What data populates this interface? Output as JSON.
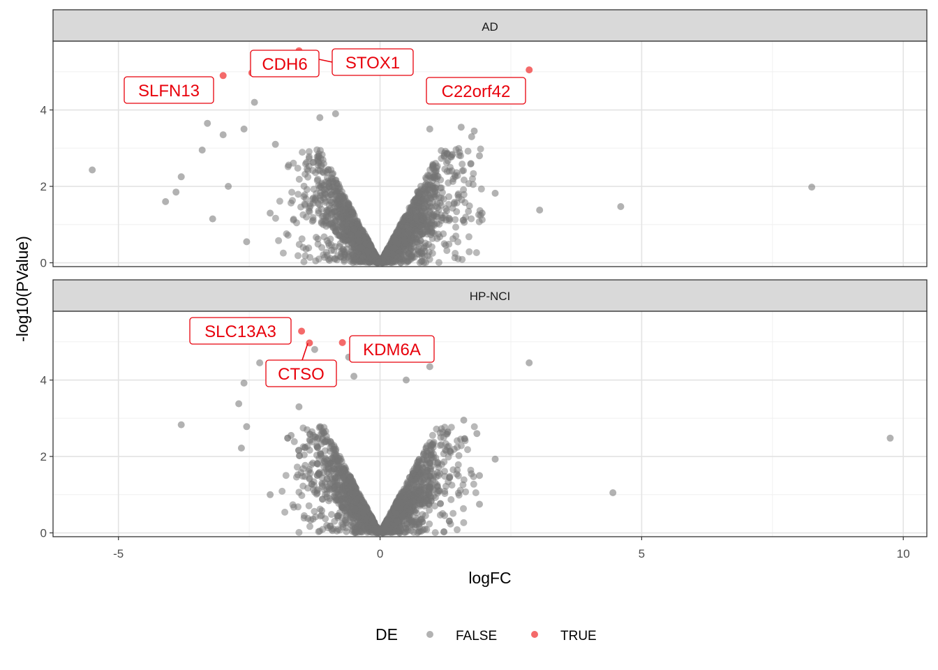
{
  "chart_data": {
    "type": "scatter",
    "facet_panels": [
      "AD",
      "HP-NCI"
    ],
    "xlabel": "logFC",
    "ylabel": "-log10(PValue)",
    "xlim": [
      -6.25,
      10.45
    ],
    "ylim": [
      -0.1,
      5.8
    ],
    "x_ticks": [
      -5,
      0,
      5,
      10
    ],
    "y_ticks": [
      0,
      2,
      4
    ],
    "x_tick_labels": [
      "-5",
      "0",
      "5",
      "10"
    ],
    "y_tick_labels": [
      "0",
      "2",
      "4"
    ],
    "grid": true,
    "legend": {
      "title": "DE",
      "position": "bottom",
      "entries": [
        {
          "label": "FALSE",
          "color": "#7f7f7f"
        },
        {
          "label": "TRUE",
          "color": "#f8766d"
        }
      ]
    },
    "colors": {
      "FALSE": "#737373",
      "TRUE": "#f25050",
      "label": "#e8000b"
    },
    "panels": [
      {
        "name": "AD",
        "highlighted": [
          {
            "gene": "SLFN13",
            "x": -3.0,
            "y": 4.9
          },
          {
            "gene": "CDH6",
            "x": -2.45,
            "y": 4.97
          },
          {
            "gene": "STOX1",
            "x": -1.55,
            "y": 5.55
          },
          {
            "gene": "C22orf42",
            "x": 2.85,
            "y": 5.05
          }
        ],
        "outliers": [
          [
            -5.5,
            2.43
          ],
          [
            -4.1,
            1.6
          ],
          [
            -3.9,
            1.85
          ],
          [
            -3.8,
            2.25
          ],
          [
            -3.4,
            2.95
          ],
          [
            -3.3,
            3.65
          ],
          [
            -3.0,
            3.35
          ],
          [
            -2.4,
            4.2
          ],
          [
            -2.6,
            3.5
          ],
          [
            -2.0,
            3.1
          ],
          [
            -2.55,
            0.55
          ],
          [
            -3.2,
            1.15
          ],
          [
            8.25,
            1.98
          ],
          [
            4.6,
            1.47
          ],
          [
            3.05,
            1.38
          ],
          [
            2.2,
            1.82
          ],
          [
            1.8,
            3.45
          ],
          [
            -0.85,
            3.9
          ],
          [
            -1.15,
            3.8
          ],
          [
            0.95,
            3.5
          ],
          [
            1.55,
            3.55
          ],
          [
            1.75,
            3.3
          ],
          [
            -2.1,
            1.3
          ],
          [
            1.9,
            2.8
          ],
          [
            -2.9,
            2.0
          ],
          [
            1.95,
            1.3
          ]
        ],
        "cloud": {
          "x_spread": 1.6,
          "y_max": 3.0,
          "n": 2200
        }
      },
      {
        "name": "HP-NCI",
        "highlighted": [
          {
            "gene": "SLC13A3",
            "x": -1.5,
            "y": 5.28
          },
          {
            "gene": "CTSO",
            "x": -1.35,
            "y": 4.97
          },
          {
            "gene": "KDM6A",
            "x": -0.72,
            "y": 4.98
          }
        ],
        "outliers": [
          [
            -3.8,
            2.83
          ],
          [
            -2.6,
            3.92
          ],
          [
            -2.7,
            3.38
          ],
          [
            -2.55,
            2.78
          ],
          [
            -2.65,
            2.22
          ],
          [
            -2.3,
            4.45
          ],
          [
            -1.25,
            4.8
          ],
          [
            -0.6,
            4.6
          ],
          [
            0.95,
            4.35
          ],
          [
            -0.5,
            4.1
          ],
          [
            2.85,
            4.45
          ],
          [
            9.75,
            2.48
          ],
          [
            4.45,
            1.05
          ],
          [
            2.2,
            1.93
          ],
          [
            1.9,
            0.75
          ],
          [
            1.9,
            1.5
          ],
          [
            0.5,
            4.0
          ],
          [
            1.85,
            2.6
          ],
          [
            -2.1,
            1.0
          ],
          [
            -1.55,
            3.3
          ],
          [
            1.6,
            2.95
          ],
          [
            -1.7,
            2.55
          ]
        ],
        "cloud": {
          "x_spread": 1.5,
          "y_max": 2.8,
          "n": 2000
        }
      }
    ]
  }
}
